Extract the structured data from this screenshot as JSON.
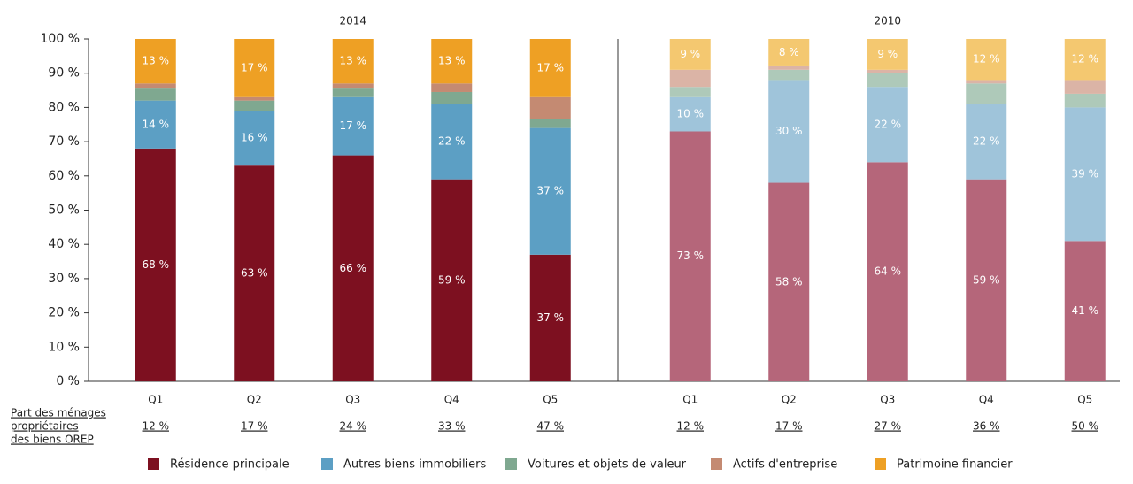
{
  "chart_data": {
    "type": "stacked-bar",
    "ylim": [
      0,
      100
    ],
    "yticks": [
      {
        "value": 0,
        "label": "0 %"
      },
      {
        "value": 10,
        "label": "10 %"
      },
      {
        "value": 20,
        "label": "20 %"
      },
      {
        "value": 30,
        "label": "30 %"
      },
      {
        "value": 40,
        "label": "40 %"
      },
      {
        "value": 50,
        "label": "50 %"
      },
      {
        "value": 60,
        "label": "60 %"
      },
      {
        "value": 70,
        "label": "70 %"
      },
      {
        "value": 80,
        "label": "80 %"
      },
      {
        "value": 90,
        "label": "90 %"
      },
      {
        "value": 100,
        "label": "100 %"
      }
    ],
    "row_label": [
      "Part des ménages",
      "propriétaires",
      "des biens OREP"
    ],
    "legend": [
      {
        "name": "Résidence principale",
        "color": "#7d1020"
      },
      {
        "name": "Autres biens immobiliers",
        "color": "#5c9fc4"
      },
      {
        "name": "Voitures et objets de valeur",
        "color": "#7fa890"
      },
      {
        "name": "Actifs d'entreprise",
        "color": "#c48a72"
      },
      {
        "name": "Patrimoine financier",
        "color": "#eea024"
      }
    ],
    "panels": [
      {
        "title": "2014",
        "categories": [
          "Q1",
          "Q2",
          "Q3",
          "Q4",
          "Q5"
        ],
        "share_labels": [
          "12 %",
          "17 %",
          "24 %",
          "33 %",
          "47 %"
        ],
        "series": [
          {
            "color": "#7d1020",
            "values": [
              68,
              63,
              66,
              59,
              37
            ],
            "value_labels": [
              "68 %",
              "63 %",
              "66 %",
              "59 %",
              "37 %"
            ]
          },
          {
            "color": "#5c9fc4",
            "values": [
              14,
              16,
              17,
              22,
              37
            ],
            "value_labels": [
              "14 %",
              "16 %",
              "17 %",
              "22 %",
              "37 %"
            ]
          },
          {
            "color": "#7fa890",
            "values": [
              3.5,
              3,
              2.5,
              3.5,
              2.5
            ]
          },
          {
            "color": "#c48a72",
            "values": [
              1.5,
              1,
              1.5,
              2.5,
              6.5
            ]
          },
          {
            "color": "#eea024",
            "values": [
              13,
              17,
              13,
              13,
              17
            ],
            "value_labels": [
              "13 %",
              "17 %",
              "13 %",
              "13 %",
              "17 %"
            ]
          }
        ]
      },
      {
        "title": "2010",
        "categories": [
          "Q1",
          "Q2",
          "Q3",
          "Q4",
          "Q5"
        ],
        "share_labels": [
          "12 %",
          "17 %",
          "27 %",
          "36 %",
          "50 %"
        ],
        "series": [
          {
            "color": "#b5667a",
            "values": [
              73,
              58,
              64,
              59,
              41
            ],
            "value_labels": [
              "73 %",
              "58 %",
              "64 %",
              "59 %",
              "41 %"
            ]
          },
          {
            "color": "#9fc4da",
            "values": [
              10,
              30,
              22,
              22,
              39
            ],
            "value_labels": [
              "10 %",
              "30 %",
              "22 %",
              "22 %",
              "39 %"
            ]
          },
          {
            "color": "#aec9b9",
            "values": [
              3,
              3,
              4,
              6,
              4
            ]
          },
          {
            "color": "#dbb4a6",
            "values": [
              5,
              1,
              1,
              1,
              4
            ]
          },
          {
            "color": "#f4c870",
            "values": [
              9,
              8,
              9,
              12,
              12
            ],
            "value_labels": [
              "9 %",
              "8 %",
              "9 %",
              "12 %",
              "12 %"
            ]
          }
        ]
      }
    ]
  }
}
